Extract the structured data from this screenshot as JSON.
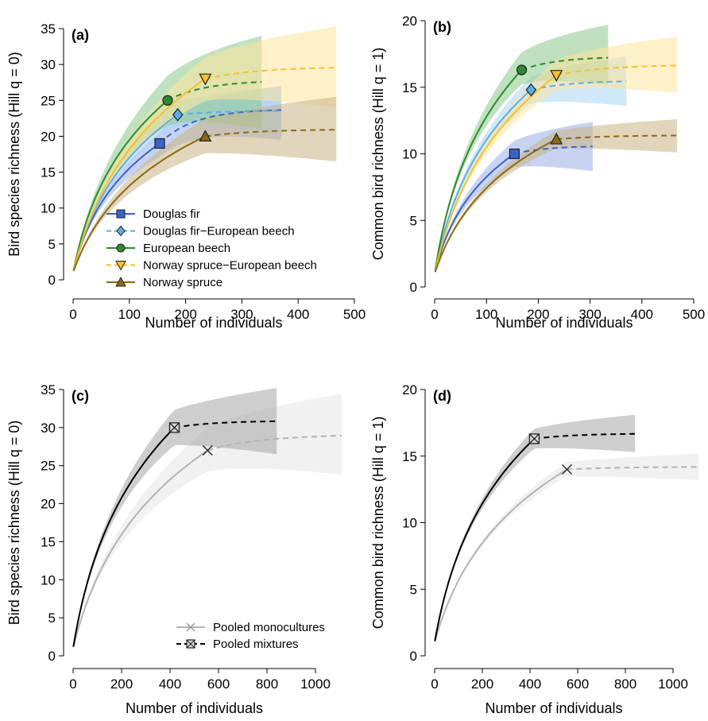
{
  "chart_data": [
    {
      "panel": "(a)",
      "type": "line",
      "xlabel": "Number of individuals",
      "ylabel": "Bird species richness (Hill q = 0)",
      "xlim": [
        0,
        500
      ],
      "ylim": [
        0,
        35
      ],
      "xticks": [
        0,
        100,
        200,
        300,
        400,
        500
      ],
      "yticks": [
        0,
        5,
        10,
        15,
        20,
        25,
        30,
        35
      ],
      "legend_position": "bottom-right",
      "series": [
        {
          "name": "Douglas fir",
          "color": "#3a63c8",
          "band": "#9aaee6",
          "marker": "square",
          "n": 154,
          "obs": 19,
          "xmax": 370,
          "yext": 23.8,
          "lo_end": 19.5,
          "hi_end": 27
        },
        {
          "name": "Douglas fir−European beech",
          "color": "#5aaee8",
          "band": "#a9d5f5",
          "marker": "diamond",
          "n": 186,
          "obs": 23,
          "xmax": 370,
          "yext": 23.6,
          "lo_end": 20.5,
          "hi_end": 27
        },
        {
          "name": "European beech",
          "color": "#2e8b2e",
          "band": "#8cc98c",
          "marker": "circle",
          "n": 168,
          "obs": 25,
          "xmax": 335,
          "yext": 27.8,
          "lo_end": 21,
          "hi_end": 34
        },
        {
          "name": "Norway spruce−European beech",
          "color": "#f2c12e",
          "band": "#fde39a",
          "marker": "triangle-down",
          "n": 235,
          "obs": 28,
          "xmax": 468,
          "yext": 29.7,
          "lo_end": 24,
          "hi_end": 35.3
        },
        {
          "name": "Norway spruce",
          "color": "#8b6914",
          "band": "#c9b485",
          "marker": "triangle-up",
          "n": 235,
          "obs": 20,
          "xmax": 468,
          "yext": 21,
          "lo_end": 16.5,
          "hi_end": 25.5
        }
      ]
    },
    {
      "panel": "(b)",
      "type": "line",
      "xlabel": "Number of individuals",
      "ylabel": "Common bird richness (Hill q = 1)",
      "xlim": [
        0,
        500
      ],
      "ylim": [
        0,
        20
      ],
      "xticks": [
        0,
        100,
        200,
        300,
        400,
        500
      ],
      "yticks": [
        0,
        5,
        10,
        15,
        20
      ],
      "series": [
        {
          "name": "Douglas fir",
          "color": "#3a63c8",
          "band": "#9aaee6",
          "marker": "square",
          "n": 154,
          "obs": 10,
          "xmax": 305,
          "yext": 10.6,
          "lo_end": 8.7,
          "hi_end": 12.4
        },
        {
          "name": "Douglas fir−European beech",
          "color": "#5aaee8",
          "band": "#a9d5f5",
          "marker": "diamond",
          "n": 186,
          "obs": 14.8,
          "xmax": 370,
          "yext": 15.5,
          "lo_end": 13.6,
          "hi_end": 17.3
        },
        {
          "name": "European beech",
          "color": "#2e8b2e",
          "band": "#8cc98c",
          "marker": "circle",
          "n": 168,
          "obs": 16.3,
          "xmax": 335,
          "yext": 17.3,
          "lo_end": 15.2,
          "hi_end": 19.7
        },
        {
          "name": "Norway spruce−European beech",
          "color": "#f2c12e",
          "band": "#fde39a",
          "marker": "triangle-down",
          "n": 235,
          "obs": 15.9,
          "xmax": 468,
          "yext": 16.7,
          "lo_end": 14.6,
          "hi_end": 18.8
        },
        {
          "name": "Norway spruce",
          "color": "#8b6914",
          "band": "#c9b485",
          "marker": "triangle-up",
          "n": 235,
          "obs": 11.1,
          "xmax": 468,
          "yext": 11.4,
          "lo_end": 10.1,
          "hi_end": 12.6
        }
      ]
    },
    {
      "panel": "(c)",
      "type": "line",
      "xlabel": "Number of individuals",
      "ylabel": "Bird species richness (Hill q = 0)",
      "xlim": [
        0,
        1100
      ],
      "ylim": [
        0,
        35
      ],
      "xticks": [
        0,
        200,
        400,
        600,
        800,
        1000
      ],
      "yticks": [
        0,
        5,
        10,
        15,
        20,
        25,
        30,
        35
      ],
      "legend_position": "bottom-right",
      "series": [
        {
          "name": "Pooled monocultures",
          "color": "#b3b3b3",
          "band": "#e6e6e6",
          "marker": "x",
          "n": 555,
          "obs": 27,
          "xmax": 1108,
          "yext": 29.1,
          "lo_end": 23.8,
          "hi_end": 34.4
        },
        {
          "name": "Pooled mixtures",
          "color": "#000000",
          "band": "#a6a6a6",
          "marker": "box-x",
          "n": 418,
          "obs": 30,
          "xmax": 840,
          "yext": 30.9,
          "lo_end": 26.5,
          "hi_end": 35.2
        }
      ]
    },
    {
      "panel": "(d)",
      "type": "line",
      "xlabel": "Number of individuals",
      "ylabel": "Common bird richness (Hill q = 1)",
      "xlim": [
        0,
        1100
      ],
      "ylim": [
        0,
        20
      ],
      "xticks": [
        0,
        200,
        400,
        600,
        800,
        1000
      ],
      "yticks": [
        0,
        5,
        10,
        15,
        20
      ],
      "series": [
        {
          "name": "Pooled monocultures",
          "color": "#b3b3b3",
          "band": "#e6e6e6",
          "marker": "x",
          "n": 555,
          "obs": 14,
          "xmax": 1108,
          "yext": 14.2,
          "lo_end": 13.2,
          "hi_end": 15.2
        },
        {
          "name": "Pooled mixtures",
          "color": "#000000",
          "band": "#a6a6a6",
          "marker": "box-x",
          "n": 418,
          "obs": 16.3,
          "xmax": 840,
          "yext": 16.7,
          "lo_end": 15.3,
          "hi_end": 18.1
        }
      ]
    }
  ]
}
